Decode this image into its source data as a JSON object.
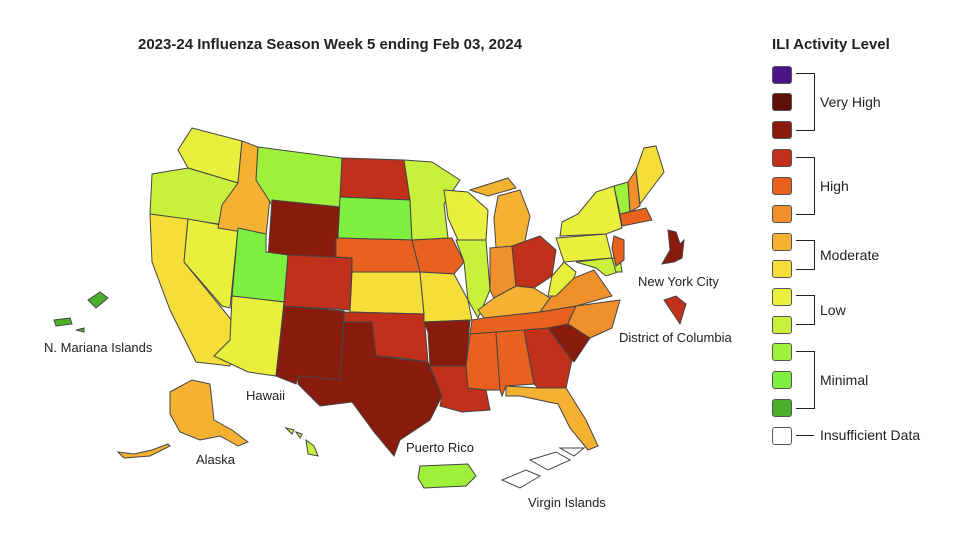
{
  "title": "2023-24 Influenza Season Week 5 ending Feb 03, 2024",
  "legend": {
    "title": "ILI Activity Level",
    "swatches": [
      "#4a1486",
      "#5e0f07",
      "#891b0c",
      "#c0301a",
      "#e8611e",
      "#f0902c",
      "#f5b232",
      "#f5dd3a",
      "#e8ef3c",
      "#c8f03c",
      "#9ff03a",
      "#7eef3e",
      "#4caf2c"
    ],
    "groups": [
      "Very High",
      "High",
      "Moderate",
      "Low",
      "Minimal"
    ],
    "insufficient": "Insufficient Data",
    "insufficient_color": "#ffffff"
  },
  "labels": {
    "nyc": "New York City",
    "dc": "District of Columbia",
    "mariana": "N. Mariana Islands",
    "hawaii": "Hawaii",
    "alaska": "Alaska",
    "puerto_rico": "Puerto Rico",
    "virgin_islands": "Virgin Islands"
  },
  "states": {
    "WA": "#e8ef3c",
    "OR": "#c8f03c",
    "CA": "#f5dd3a",
    "NV": "#e8ef3c",
    "ID": "#f5b232",
    "MT": "#9ff03a",
    "WY": "#891b0c",
    "UT": "#7eef3e",
    "AZ": "#e8ef3c",
    "CO": "#c0301a",
    "NM": "#891b0c",
    "ND": "#c0301a",
    "SD": "#7eef3e",
    "NE": "#e8611e",
    "KS": "#f5dd3a",
    "OK": "#c0301a",
    "TX": "#891b0c",
    "MN": "#c8f03c",
    "IA": "#e8611e",
    "MO": "#f5dd3a",
    "AR": "#891b0c",
    "LA": "#c0301a",
    "WI": "#e8ef3c",
    "IL": "#c8f03c",
    "MI": "#f5b232",
    "IN": "#f0902c",
    "OH": "#c0301a",
    "KY": "#f5b232",
    "TN": "#e8611e",
    "MS": "#e8611e",
    "AL": "#e8611e",
    "GA": "#c0301a",
    "SC": "#891b0c",
    "NC": "#f0902c",
    "FL": "#f5b232",
    "VA": "#f0902c",
    "WV": "#e8ef3c",
    "PA": "#e8ef3c",
    "NY": "#e8ef3c",
    "VT": "#9ff03a",
    "NH": "#f0902c",
    "ME": "#f5dd3a",
    "MA": "#e8611e",
    "NJ": "#e8611e",
    "MD": "#c8f03c",
    "DE": "#c8f03c",
    "AK": "#f5b232",
    "HI": "#c8f03c",
    "NYC": "#891b0c",
    "DC": "#c0301a",
    "MNI": "#4caf2c",
    "PR": "#9ff03a",
    "VI": "#ffffff"
  }
}
